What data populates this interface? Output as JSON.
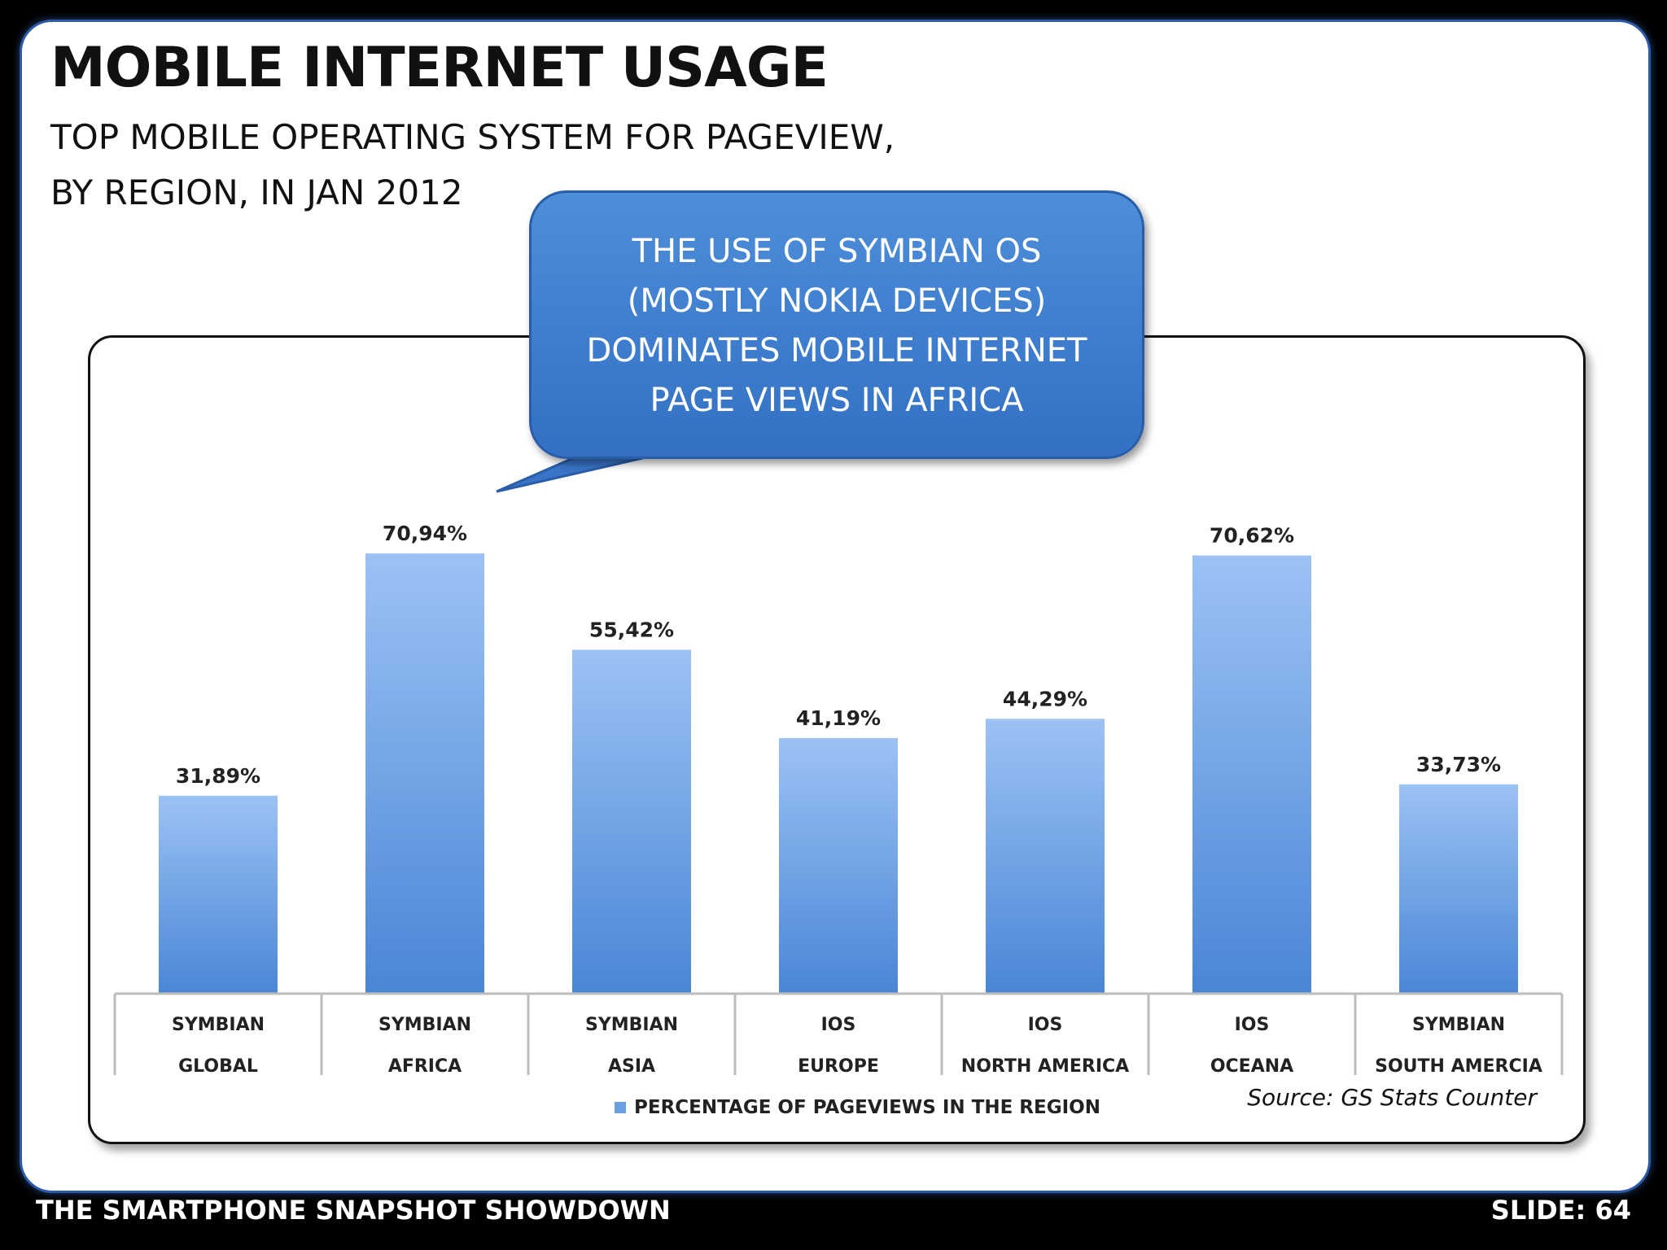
{
  "slide": {
    "title": "MOBILE INTERNET USAGE",
    "subtitle_line1": "TOP MOBILE OPERATING SYSTEM FOR PAGEVIEW,",
    "subtitle_line2": "BY REGION, IN JAN 2012",
    "callout_lines": [
      "THE USE OF SYMBIAN OS",
      "(MOSTLY NOKIA DEVICES)",
      "DOMINATES MOBILE INTERNET",
      "PAGE VIEWS IN AFRICA"
    ],
    "source": "Source: GS Stats Counter",
    "footer_left": "THE SMARTPHONE SNAPSHOT SHOWDOWN",
    "footer_right": "SLIDE: 64"
  },
  "chart_data": {
    "type": "bar",
    "categories": [
      [
        "SYMBIAN",
        "GLOBAL"
      ],
      [
        "SYMBIAN",
        "AFRICA"
      ],
      [
        "SYMBIAN",
        "ASIA"
      ],
      [
        "IOS",
        "EUROPE"
      ],
      [
        "IOS",
        "NORTH AMERICA"
      ],
      [
        "IOS",
        "OCEANA"
      ],
      [
        "SYMBIAN",
        "SOUTH AMERCIA"
      ]
    ],
    "series": [
      {
        "name": "PERCENTAGE OF PAGEVIEWS IN THE REGION",
        "values": [
          31.89,
          70.94,
          55.42,
          41.19,
          44.29,
          70.62,
          33.73
        ]
      }
    ],
    "data_labels": [
      "31,89%",
      "70,94%",
      "55,42%",
      "41,19%",
      "44,29%",
      "70,62%",
      "33,73%"
    ],
    "ylim": [
      0,
      100
    ],
    "grid": false,
    "legend_position": "bottom",
    "colors": {
      "bar_top": "#9cc2f5",
      "bar_bottom": "#4a86d6",
      "legend_swatch": "#6a9fe2"
    }
  }
}
